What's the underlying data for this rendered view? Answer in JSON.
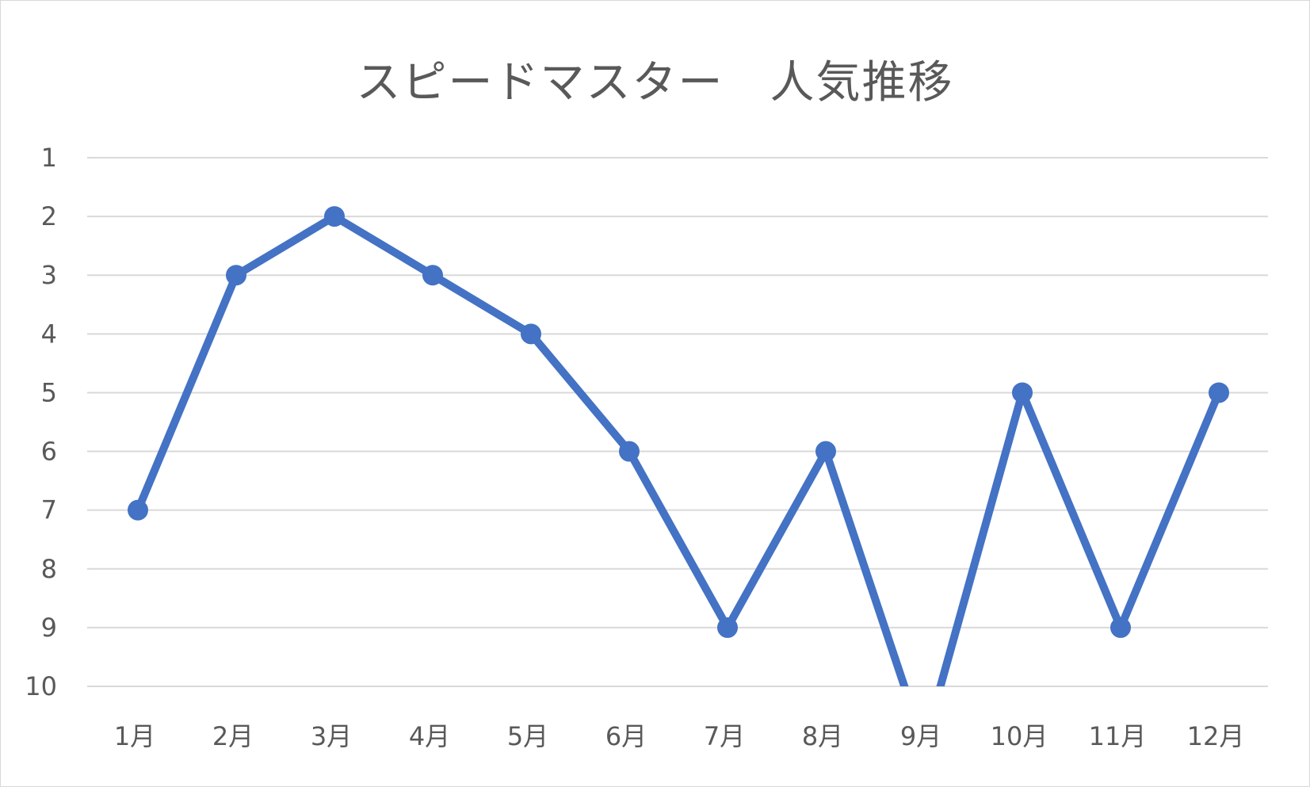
{
  "chart_data": {
    "type": "line",
    "title": "スピードマスター　人気推移",
    "categories": [
      "1月",
      "2月",
      "3月",
      "4月",
      "5月",
      "6月",
      "7月",
      "8月",
      "9月",
      "10月",
      "11月",
      "12月"
    ],
    "series": [
      {
        "values": [
          7,
          3,
          2,
          3,
          4,
          6,
          9,
          6,
          11,
          5,
          9,
          5
        ]
      }
    ],
    "y_ticks": [
      "1",
      "2",
      "3",
      "4",
      "5",
      "6",
      "7",
      "8",
      "9",
      "10"
    ],
    "ylim": [
      1,
      10
    ],
    "y_axis_reversed": true,
    "grid": "horizontal",
    "legend": "none",
    "colors": {
      "line": "#4472c4",
      "grid": "#d9d9d9",
      "text": "#595959"
    }
  }
}
